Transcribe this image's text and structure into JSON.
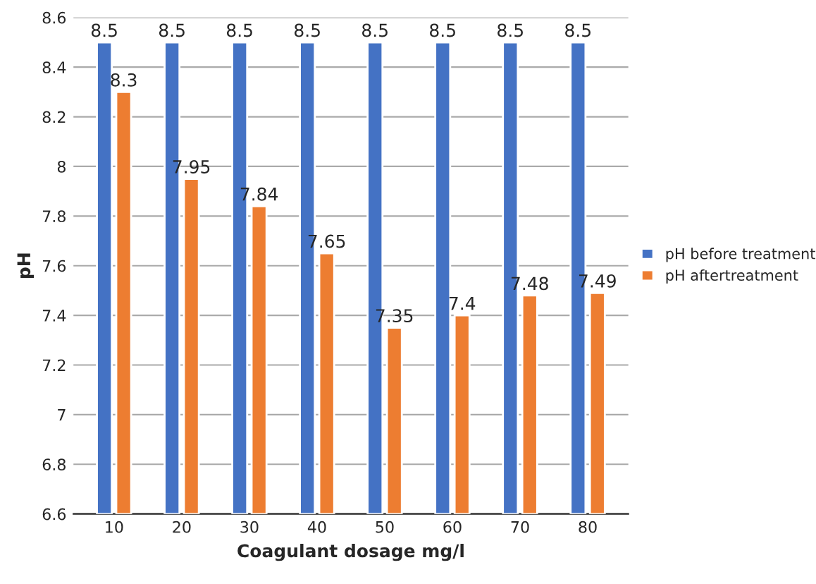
{
  "chart_data": {
    "type": "bar",
    "xlabel": "Coagulant dosage mg/l",
    "ylabel": "pH",
    "categories": [
      "10",
      "20",
      "30",
      "40",
      "50",
      "60",
      "70",
      "80"
    ],
    "series": [
      {
        "name": "pH before treatment",
        "color": "#4472c4",
        "values": [
          8.5,
          8.5,
          8.5,
          8.5,
          8.5,
          8.5,
          8.5,
          8.5
        ]
      },
      {
        "name": "pH aftertreatment",
        "color": "#ed7d31",
        "values": [
          8.3,
          7.95,
          7.84,
          7.65,
          7.35,
          7.4,
          7.48,
          7.49
        ]
      }
    ],
    "ylim": [
      6.6,
      8.6
    ],
    "yticks": [
      6.6,
      6.8,
      7,
      7.2,
      7.4,
      7.6,
      7.8,
      8,
      8.2,
      8.4,
      8.6
    ],
    "grid": "y",
    "legend": "right",
    "data_labels": true
  }
}
